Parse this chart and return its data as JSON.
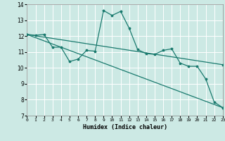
{
  "xlabel": "Humidex (Indice chaleur)",
  "x_ticks": [
    0,
    1,
    2,
    3,
    4,
    5,
    6,
    7,
    8,
    9,
    10,
    11,
    12,
    13,
    14,
    15,
    16,
    17,
    18,
    19,
    20,
    21,
    22,
    23
  ],
  "ylim": [
    7,
    14
  ],
  "yticks": [
    7,
    8,
    9,
    10,
    11,
    12,
    13,
    14
  ],
  "xlim": [
    0,
    23
  ],
  "bg_color": "#cce9e4",
  "line_color": "#1a7a6e",
  "grid_color": "#ffffff",
  "series1": {
    "x": [
      0,
      1,
      2,
      3,
      4,
      5,
      6,
      7,
      8,
      9,
      10,
      11,
      12,
      13,
      14,
      15,
      16,
      17,
      18,
      19,
      20,
      21,
      22,
      23
    ],
    "y": [
      12.1,
      12.05,
      12.1,
      11.3,
      11.3,
      10.4,
      10.55,
      11.1,
      11.05,
      13.6,
      13.3,
      13.55,
      12.5,
      11.15,
      10.9,
      10.85,
      11.1,
      11.2,
      10.3,
      10.1,
      10.1,
      9.3,
      7.85,
      7.5
    ]
  },
  "series2": {
    "x": [
      0,
      23
    ],
    "y": [
      12.1,
      7.5
    ]
  },
  "series3": {
    "x": [
      0,
      23
    ],
    "y": [
      12.1,
      10.2
    ]
  }
}
